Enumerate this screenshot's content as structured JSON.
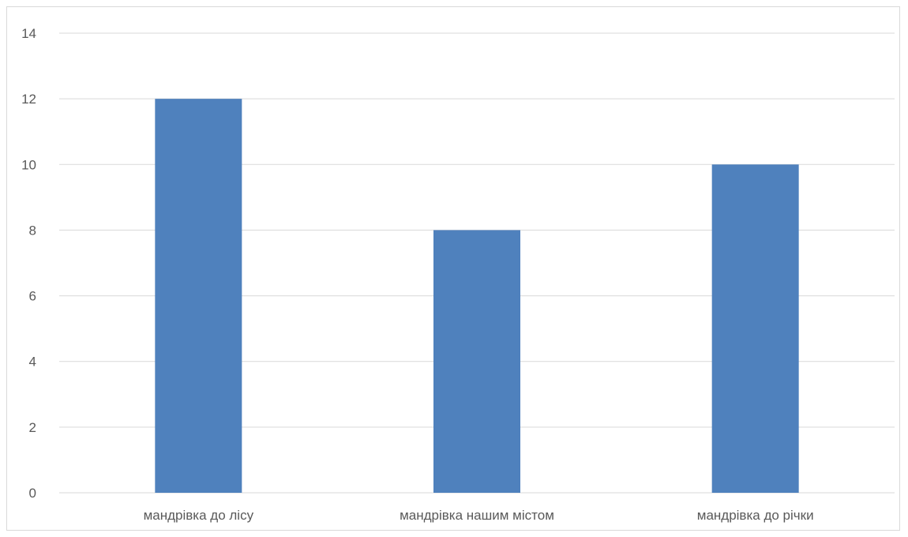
{
  "chart_data": {
    "type": "bar",
    "categories": [
      "мандрівка до лісу",
      "мандрівка нашим містом",
      "мандрівка до річки"
    ],
    "values": [
      12,
      8,
      10
    ],
    "title": "",
    "xlabel": "",
    "ylabel": "",
    "ylim": [
      0,
      14
    ],
    "yticks": [
      0,
      2,
      4,
      6,
      8,
      10,
      12,
      14
    ],
    "grid": true,
    "legend": "none",
    "colors": {
      "bar": "#4F81BD",
      "grid": "#d9d9d9",
      "text": "#595959"
    }
  }
}
